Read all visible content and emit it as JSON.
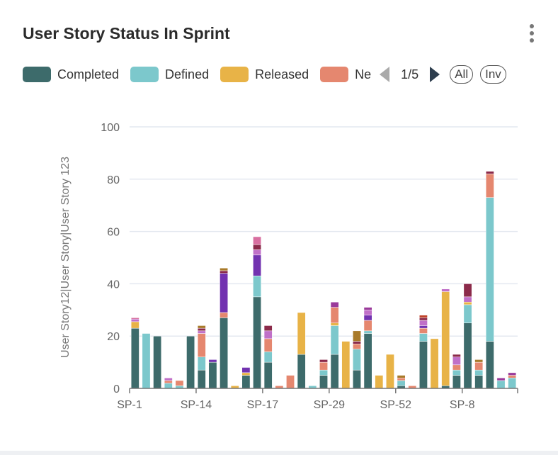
{
  "header": {
    "title": "User Story Status In Sprint"
  },
  "legend": {
    "page": "1/5",
    "all_label": "All",
    "inv_label": "Inv"
  },
  "chart_data": {
    "type": "bar",
    "stacked": true,
    "title": "User Story Status In Sprint",
    "xlabel": "",
    "ylabel": "User Story12|User Story|User Story 123",
    "ylim": [
      0,
      100
    ],
    "yticks": [
      "0",
      "20",
      "40",
      "60",
      "80",
      "100"
    ],
    "grid": true,
    "legend_position": "top",
    "categories": [
      "SP-1",
      "",
      "",
      "",
      "",
      "",
      "SP-14",
      "",
      "",
      "",
      "",
      "",
      "SP-17",
      "",
      "",
      "",
      "",
      "",
      "SP-29",
      "",
      "",
      "",
      "",
      "",
      "SP-52",
      "",
      "",
      "",
      "",
      "",
      "SP-8",
      "",
      "",
      "",
      ""
    ],
    "series": [
      {
        "name": "Completed",
        "color": "#3d6b6b",
        "values": [
          23,
          0,
          20,
          0,
          0,
          20,
          7,
          10,
          27,
          0,
          5,
          35,
          10,
          0,
          0,
          13,
          0,
          5,
          13,
          0,
          7,
          21,
          0,
          0,
          1,
          0,
          18,
          0,
          1,
          5,
          25,
          5,
          18,
          0,
          0
        ]
      },
      {
        "name": "Defined",
        "color": "#7cc8cc",
        "values": [
          0,
          21,
          0,
          2,
          1,
          0,
          5,
          0,
          0,
          0,
          0,
          8,
          4,
          0,
          0,
          0,
          1,
          2,
          11,
          0,
          8,
          1,
          0,
          0,
          2,
          0,
          3,
          0,
          0,
          2,
          7,
          2,
          55,
          3,
          4
        ]
      },
      {
        "name": "Released",
        "color": "#e8b347",
        "values": [
          2.5,
          0,
          0,
          0,
          0,
          0,
          0,
          0,
          0,
          1,
          1,
          0,
          0,
          0,
          0,
          16,
          0,
          0,
          1,
          18,
          0,
          0,
          5,
          13,
          0,
          0,
          0,
          19,
          36,
          0,
          1,
          0,
          0,
          0,
          0
        ]
      },
      {
        "name": "Ne",
        "color": "#e5876f",
        "values": [
          0,
          0,
          0,
          1,
          2,
          0,
          9,
          0,
          2,
          0,
          0,
          0,
          5,
          1,
          5,
          0,
          0,
          3,
          6,
          0,
          2,
          4,
          0,
          0,
          1,
          1,
          2,
          0,
          0,
          2,
          0,
          3,
          9,
          0,
          1
        ]
      },
      {
        "name": "",
        "color": "#7232b0",
        "values": [
          0,
          0,
          0,
          0,
          0,
          0,
          0,
          1,
          15,
          0,
          2,
          8,
          0,
          0,
          0,
          0,
          0,
          0,
          0,
          0,
          0,
          2,
          0,
          0,
          0,
          0,
          1,
          0,
          0,
          0,
          0,
          0,
          0,
          0,
          0
        ]
      },
      {
        "name": "",
        "color": "#c070c8",
        "values": [
          1,
          0,
          0,
          1,
          0,
          0,
          1,
          0,
          0,
          0,
          0,
          2,
          3,
          0,
          0,
          0,
          0,
          0,
          0,
          0,
          0,
          2,
          0,
          0,
          0,
          0,
          2,
          0,
          1,
          3,
          2,
          0,
          0,
          0,
          0
        ]
      },
      {
        "name": "",
        "color": "#8b2a4a",
        "values": [
          0,
          0,
          0,
          0,
          0,
          0,
          1,
          0,
          1,
          0,
          0,
          2,
          2,
          0,
          0,
          0,
          0,
          1,
          0,
          0,
          1,
          0,
          0,
          0,
          0,
          0,
          1,
          0,
          0,
          1,
          5,
          0,
          1,
          0,
          0
        ]
      },
      {
        "name": "",
        "color": "#a87a2a",
        "values": [
          0,
          0,
          0,
          0,
          0,
          0,
          1,
          0,
          1,
          0,
          0,
          0,
          0,
          0,
          0,
          0,
          0,
          0,
          0,
          0,
          4,
          0,
          0,
          0,
          1,
          0,
          0,
          0,
          0,
          0,
          0,
          1,
          0,
          0,
          0
        ]
      },
      {
        "name": "",
        "color": "#d86fa0",
        "values": [
          0.5,
          0,
          0,
          0,
          0,
          0,
          0,
          0,
          0,
          0,
          0,
          3,
          0,
          0,
          0,
          0,
          0,
          0,
          0,
          0,
          0,
          0,
          0,
          0,
          0,
          0,
          0,
          0,
          0,
          0,
          0,
          0,
          0,
          0,
          0
        ]
      },
      {
        "name": "",
        "color": "#9a3a9a",
        "values": [
          0,
          0,
          0,
          0,
          0,
          0,
          0,
          0,
          0,
          0,
          0,
          0,
          0,
          0,
          0,
          0,
          0,
          0,
          2,
          0,
          0,
          1,
          0,
          0,
          0,
          0,
          0,
          0,
          0,
          0,
          0,
          0,
          0,
          1,
          1
        ]
      },
      {
        "name": "",
        "color": "#c0442a",
        "values": [
          0,
          0,
          0,
          0,
          0,
          0,
          0,
          0,
          0,
          0,
          0,
          0,
          0,
          0,
          0,
          0,
          0,
          0,
          0,
          0,
          0,
          0,
          0,
          0,
          0,
          0,
          1,
          0,
          0,
          0,
          0,
          0,
          0,
          0,
          0
        ]
      }
    ]
  }
}
